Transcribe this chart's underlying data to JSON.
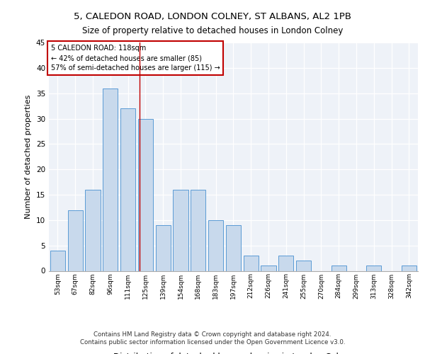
{
  "title1": "5, CALEDON ROAD, LONDON COLNEY, ST ALBANS, AL2 1PB",
  "title2": "Size of property relative to detached houses in London Colney",
  "xlabel": "Distribution of detached houses by size in London Colney",
  "ylabel": "Number of detached properties",
  "bar_labels": [
    "53sqm",
    "67sqm",
    "82sqm",
    "96sqm",
    "111sqm",
    "125sqm",
    "139sqm",
    "154sqm",
    "168sqm",
    "183sqm",
    "197sqm",
    "212sqm",
    "226sqm",
    "241sqm",
    "255sqm",
    "270sqm",
    "284sqm",
    "299sqm",
    "313sqm",
    "328sqm",
    "342sqm"
  ],
  "bar_values": [
    4,
    12,
    16,
    36,
    32,
    30,
    9,
    16,
    16,
    10,
    9,
    3,
    1,
    3,
    2,
    0,
    1,
    0,
    1,
    0,
    1
  ],
  "bar_color": "#c8d9ec",
  "bar_edge_color": "#5b9bd5",
  "vline_x": 4.67,
  "vline_color": "#c00000",
  "annotation_title": "5 CALEDON ROAD: 118sqm",
  "annotation_line1": "← 42% of detached houses are smaller (85)",
  "annotation_line2": "57% of semi-detached houses are larger (115) →",
  "annotation_box_color": "#ffffff",
  "annotation_box_edge": "#c00000",
  "ylim": [
    0,
    45
  ],
  "yticks": [
    0,
    5,
    10,
    15,
    20,
    25,
    30,
    35,
    40,
    45
  ],
  "background_color": "#eef2f8",
  "footer1": "Contains HM Land Registry data © Crown copyright and database right 2024.",
  "footer2": "Contains public sector information licensed under the Open Government Licence v3.0."
}
